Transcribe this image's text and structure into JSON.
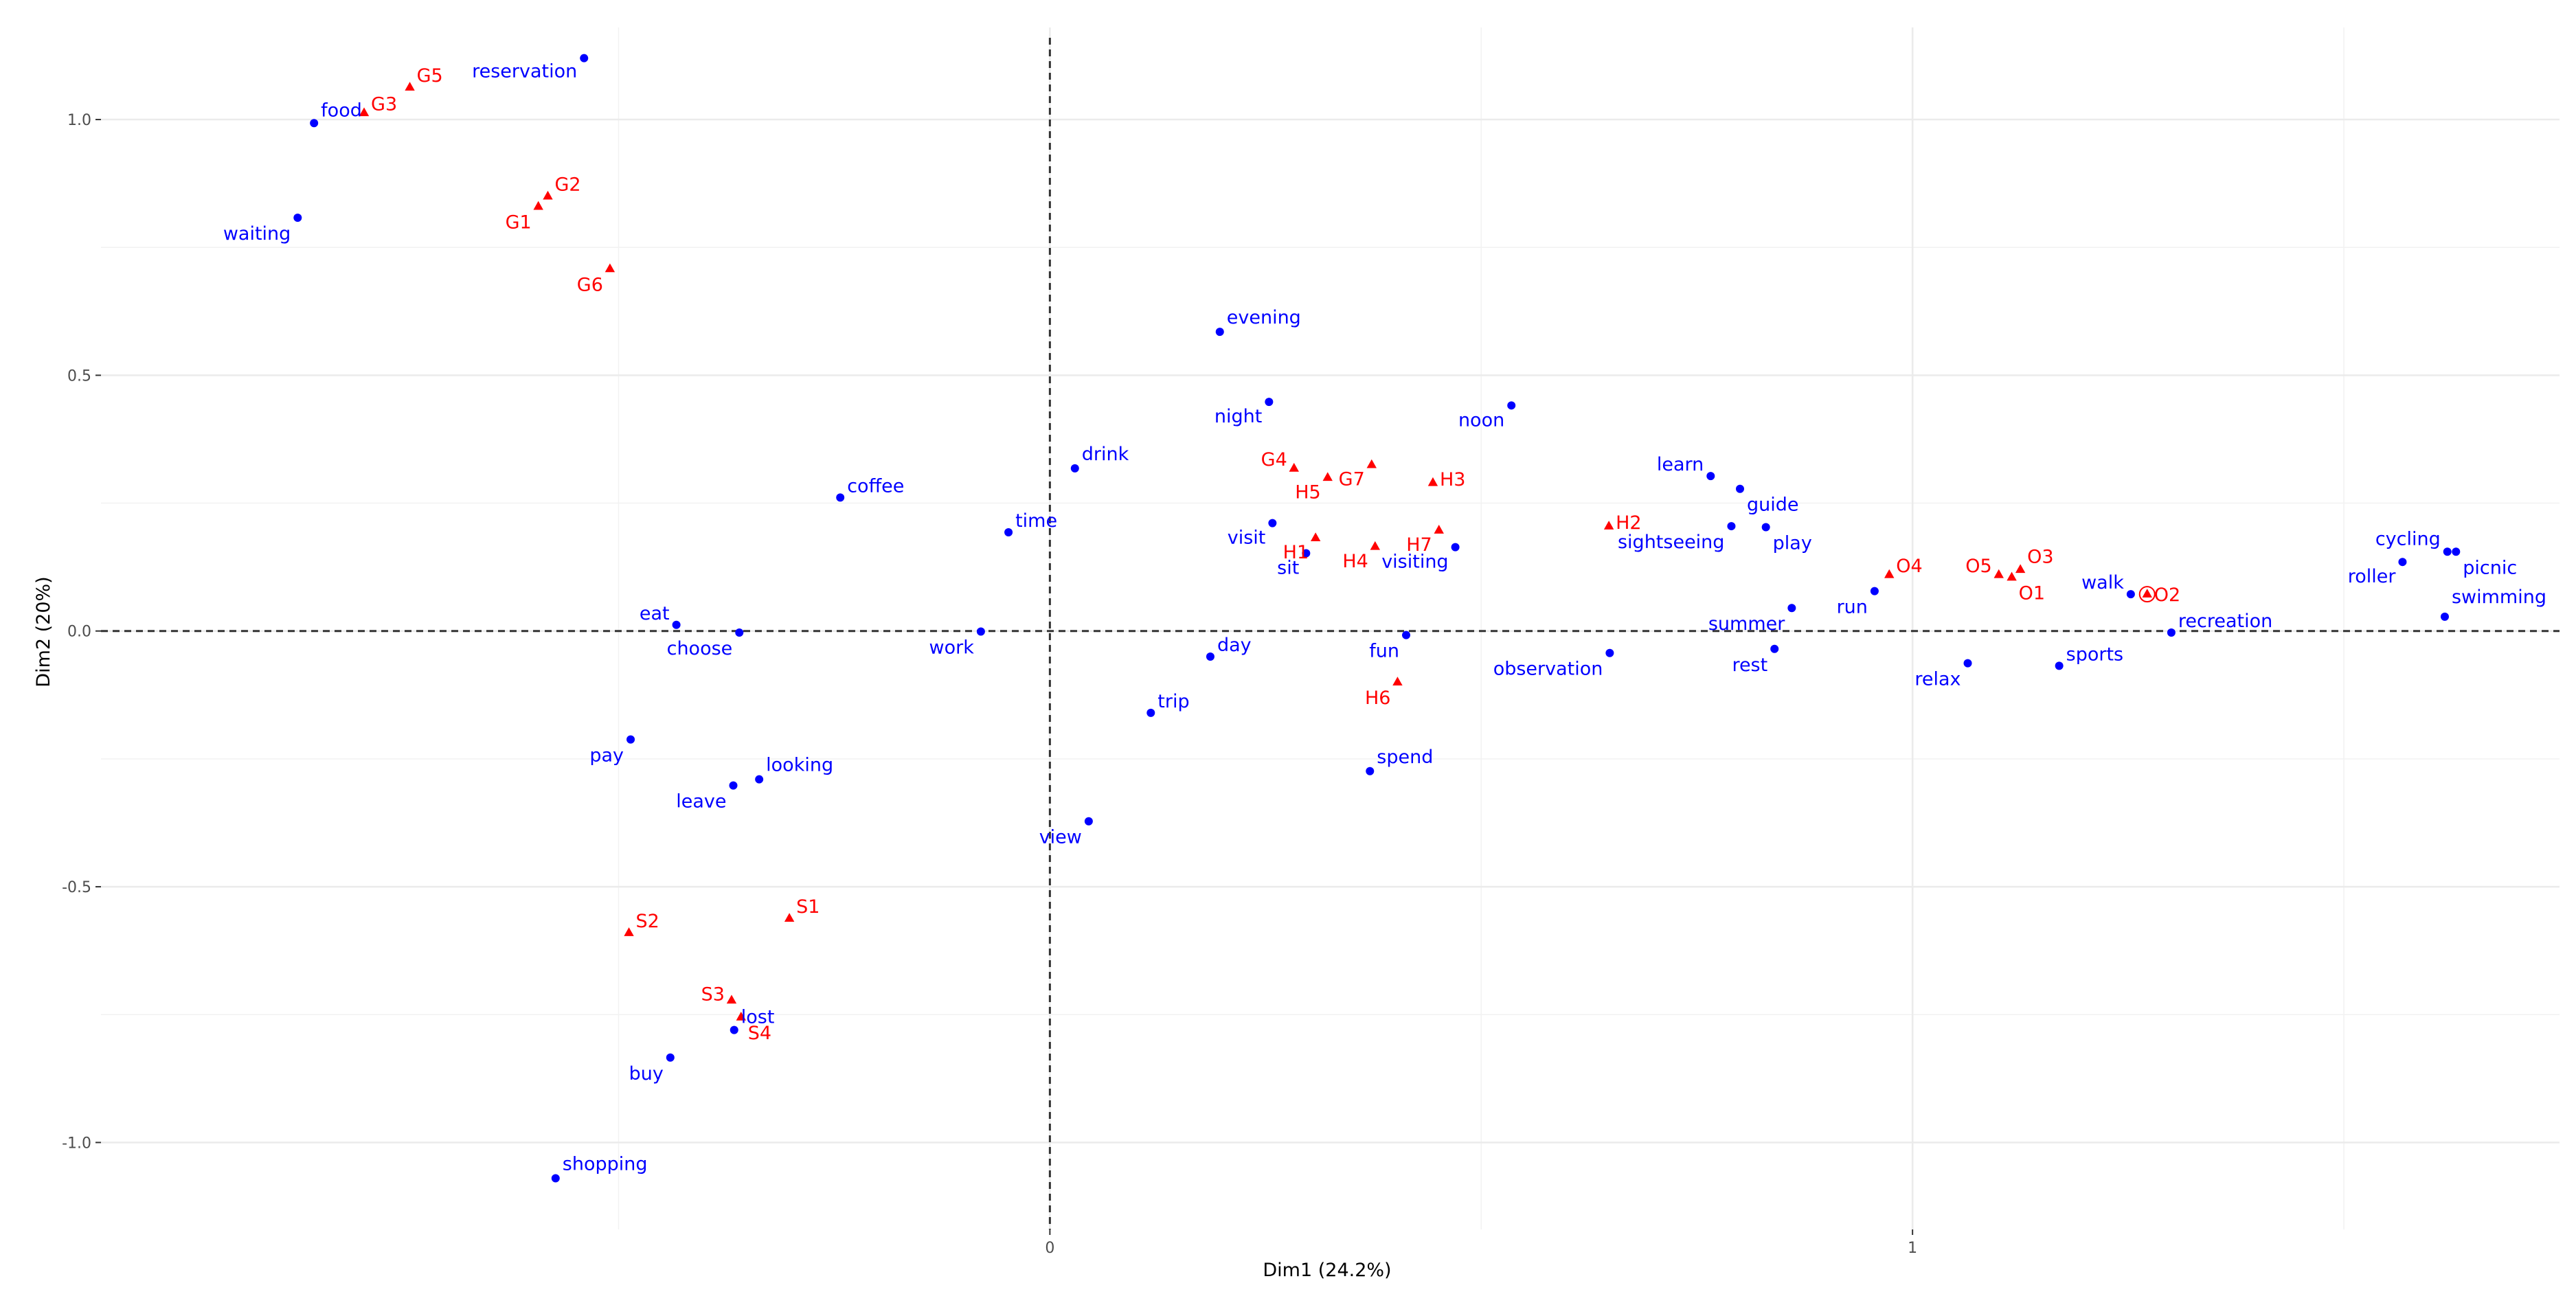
{
  "chart_data": {
    "type": "scatter",
    "title": "",
    "xlabel": "Dim1 (24.2%)",
    "ylabel": "Dim2 (20%)",
    "xlim": [
      -1.1,
      1.75
    ],
    "ylim": [
      -1.17,
      1.18
    ],
    "x_ticks": [
      0,
      1
    ],
    "y_ticks": [
      1.0,
      0.5,
      0.0,
      -0.5,
      -1.0
    ],
    "y_tick_labels": [
      "1.0",
      "0.5",
      "0.0",
      "-0.5",
      "-1.0"
    ],
    "x_tick_labels": [
      "0",
      "1"
    ],
    "grid": true,
    "reference_lines": {
      "x": 0,
      "y": 0,
      "style": "dashed"
    },
    "series": [
      {
        "marker": "circle",
        "color": "#0000ff",
        "points": [
          {
            "label": "reservation",
            "x": -0.54,
            "y": 1.12,
            "anchor": "end",
            "dy": 28
          },
          {
            "label": "food",
            "x": -0.853,
            "y": 0.993,
            "anchor": "start",
            "dy": -10
          },
          {
            "label": "waiting",
            "x": -0.872,
            "y": 0.808,
            "anchor": "end",
            "dy": 32
          },
          {
            "label": "evening",
            "x": 0.197,
            "y": 0.585,
            "anchor": "start",
            "dy": -12
          },
          {
            "label": "night",
            "x": 0.254,
            "y": 0.448,
            "anchor": "end",
            "dy": 30
          },
          {
            "label": "noon",
            "x": 0.535,
            "y": 0.441,
            "anchor": "end",
            "dy": 30
          },
          {
            "label": "drink",
            "x": 0.029,
            "y": 0.318,
            "anchor": "start",
            "dy": -12
          },
          {
            "label": "coffee",
            "x": -0.243,
            "y": 0.261,
            "anchor": "start",
            "dy": -8
          },
          {
            "label": "time",
            "x": -0.048,
            "y": 0.193,
            "anchor": "start",
            "dy": -8
          },
          {
            "label": "visit",
            "x": 0.258,
            "y": 0.211,
            "anchor": "end",
            "dy": 30
          },
          {
            "label": "sit",
            "x": 0.297,
            "y": 0.152,
            "anchor": "end",
            "dy": 30
          },
          {
            "label": "visiting",
            "x": 0.47,
            "y": 0.164,
            "anchor": "end",
            "dy": 30
          },
          {
            "label": "learn",
            "x": 0.766,
            "y": 0.303,
            "anchor": "end",
            "dy": -8
          },
          {
            "label": "guide",
            "x": 0.8,
            "y": 0.278,
            "anchor": "start",
            "dy": 32
          },
          {
            "label": "sightseeing",
            "x": 0.79,
            "y": 0.205,
            "anchor": "end",
            "dy": 32
          },
          {
            "label": "play",
            "x": 0.83,
            "y": 0.203,
            "anchor": "start",
            "dy": 32
          },
          {
            "label": "eat",
            "x": -0.433,
            "y": 0.012,
            "anchor": "end",
            "dy": -8
          },
          {
            "label": "choose",
            "x": -0.36,
            "y": -0.003,
            "anchor": "end",
            "dy": 32
          },
          {
            "label": "work",
            "x": -0.08,
            "y": -0.001,
            "anchor": "end",
            "dy": 32
          },
          {
            "label": "day",
            "x": 0.186,
            "y": -0.05,
            "anchor": "start",
            "dy": -8
          },
          {
            "label": "fun",
            "x": 0.413,
            "y": -0.008,
            "anchor": "end",
            "dy": 32
          },
          {
            "label": "summer",
            "x": 0.86,
            "y": 0.045,
            "anchor": "end",
            "dy": 32
          },
          {
            "label": "rest",
            "x": 0.84,
            "y": -0.035,
            "anchor": "end",
            "dy": 32
          },
          {
            "label": "observation",
            "x": 0.649,
            "y": -0.043,
            "anchor": "end",
            "dy": 32
          },
          {
            "label": "run",
            "x": 0.956,
            "y": 0.078,
            "anchor": "end",
            "dy": 32
          },
          {
            "label": "relax",
            "x": 1.064,
            "y": -0.063,
            "anchor": "end",
            "dy": 32
          },
          {
            "label": "sports",
            "x": 1.17,
            "y": -0.068,
            "anchor": "start",
            "dy": -8
          },
          {
            "label": "walk",
            "x": 1.253,
            "y": 0.072,
            "anchor": "end",
            "dy": -8
          },
          {
            "label": "recreation",
            "x": 1.3,
            "y": -0.003,
            "anchor": "start",
            "dy": -8
          },
          {
            "label": "cycling",
            "x": 1.62,
            "y": 0.155,
            "anchor": "end",
            "dy": -10
          },
          {
            "label": "roller",
            "x": 1.568,
            "y": 0.135,
            "anchor": "end",
            "dy": 30
          },
          {
            "label": "picnic",
            "x": 1.63,
            "y": 0.155,
            "anchor": "start",
            "dy": 32
          },
          {
            "label": "swimming",
            "x": 1.617,
            "y": 0.028,
            "anchor": "start",
            "dy": -20
          },
          {
            "label": "trip",
            "x": 0.117,
            "y": -0.16,
            "anchor": "start",
            "dy": -8
          },
          {
            "label": "spend",
            "x": 0.371,
            "y": -0.274,
            "anchor": "start",
            "dy": -12
          },
          {
            "label": "pay",
            "x": -0.486,
            "y": -0.212,
            "anchor": "end",
            "dy": 32
          },
          {
            "label": "looking",
            "x": -0.337,
            "y": -0.29,
            "anchor": "start",
            "dy": -12
          },
          {
            "label": "leave",
            "x": -0.367,
            "y": -0.302,
            "anchor": "end",
            "dy": 32
          },
          {
            "label": "view",
            "x": 0.045,
            "y": -0.372,
            "anchor": "end",
            "dy": 32
          },
          {
            "label": "lost",
            "x": -0.366,
            "y": -0.78,
            "anchor": "start",
            "dy": -10
          },
          {
            "label": "buy",
            "x": -0.44,
            "y": -0.834,
            "anchor": "end",
            "dy": 32
          },
          {
            "label": "shopping",
            "x": -0.573,
            "y": -1.07,
            "anchor": "start",
            "dy": -12
          }
        ]
      },
      {
        "marker": "triangle",
        "color": "#ff0000",
        "points": [
          {
            "label": "G5",
            "x": -0.742,
            "y": 1.063,
            "anchor": "start",
            "dy": -8
          },
          {
            "label": "G3",
            "x": -0.795,
            "y": 1.013,
            "anchor": "start",
            "dy": -4
          },
          {
            "label": "G2",
            "x": -0.582,
            "y": 0.85,
            "anchor": "start",
            "dy": -8
          },
          {
            "label": "G1",
            "x": -0.593,
            "y": 0.83,
            "anchor": "end",
            "dy": 32
          },
          {
            "label": "G6",
            "x": -0.51,
            "y": 0.708,
            "anchor": "end",
            "dy": 32
          },
          {
            "label": "G4",
            "x": 0.283,
            "y": 0.318,
            "anchor": "end",
            "dy": -4
          },
          {
            "label": "G7",
            "x": 0.373,
            "y": 0.325,
            "anchor": "end",
            "dy": 30
          },
          {
            "label": "H5",
            "x": 0.322,
            "y": 0.3,
            "anchor": "end",
            "dy": 30
          },
          {
            "label": "H3",
            "x": 0.444,
            "y": 0.29,
            "anchor": "start",
            "dy": 4
          },
          {
            "label": "H2",
            "x": 0.648,
            "y": 0.205,
            "anchor": "start",
            "dy": 4
          },
          {
            "label": "H1",
            "x": 0.308,
            "y": 0.182,
            "anchor": "end",
            "dy": 30
          },
          {
            "label": "H7",
            "x": 0.451,
            "y": 0.197,
            "anchor": "end",
            "dy": 30
          },
          {
            "label": "H4",
            "x": 0.377,
            "y": 0.165,
            "anchor": "end",
            "dy": 30
          },
          {
            "label": "H6",
            "x": 0.403,
            "y": -0.1,
            "anchor": "end",
            "dy": 32
          },
          {
            "label": "O4",
            "x": 0.973,
            "y": 0.11,
            "anchor": "start",
            "dy": -4
          },
          {
            "label": "O5",
            "x": 1.1,
            "y": 0.11,
            "anchor": "end",
            "dy": -4
          },
          {
            "label": "O3",
            "x": 1.125,
            "y": 0.12,
            "anchor": "start",
            "dy": -10
          },
          {
            "label": "O1",
            "x": 1.115,
            "y": 0.105,
            "anchor": "start",
            "dy": 32
          },
          {
            "label": "O2",
            "x": 1.272,
            "y": 0.072,
            "anchor": "start",
            "dy": 10
          },
          {
            "label": "S1",
            "x": -0.302,
            "y": -0.562,
            "anchor": "start",
            "dy": -8
          },
          {
            "label": "S2",
            "x": -0.488,
            "y": -0.59,
            "anchor": "start",
            "dy": -8
          },
          {
            "label": "S3",
            "x": -0.369,
            "y": -0.722,
            "anchor": "end",
            "dy": 0
          },
          {
            "label": "S4",
            "x": -0.358,
            "y": -0.755,
            "anchor": "start",
            "dy": 32
          }
        ]
      }
    ]
  }
}
